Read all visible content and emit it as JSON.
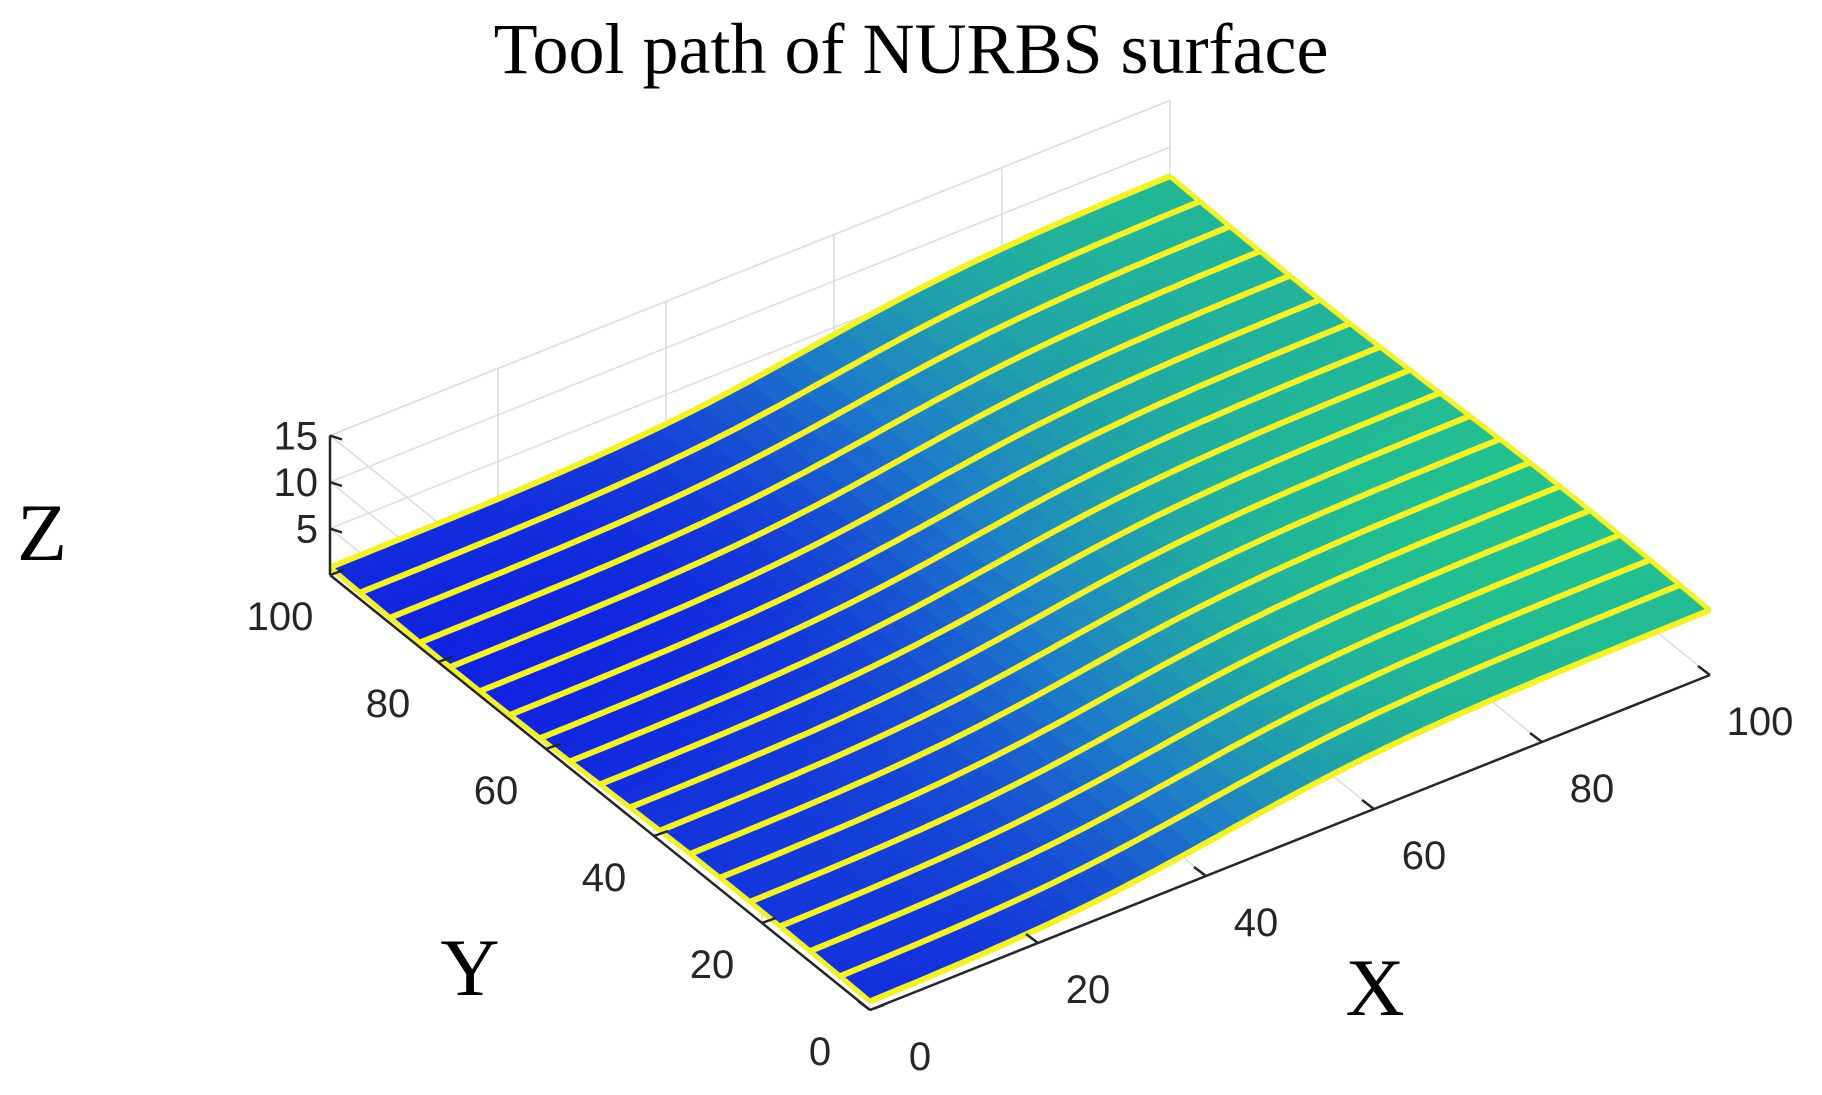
{
  "chart_data": {
    "type": "surface",
    "title": "Tool path of NURBS surface",
    "xlabel": "X",
    "ylabel": "Y",
    "zlabel": "Z",
    "xlim": [
      0,
      100
    ],
    "ylim": [
      0,
      100
    ],
    "zlim": [
      0,
      15
    ],
    "x_ticks": [
      "0",
      "20",
      "40",
      "60",
      "80",
      "100"
    ],
    "y_ticks": [
      "0",
      "20",
      "40",
      "60",
      "80",
      "100"
    ],
    "z_ticks": [
      "5",
      "10",
      "15"
    ],
    "grid": true,
    "path_lines": 19,
    "z_range_shown": [
      0,
      7
    ],
    "colors": {
      "low": "#1020e0",
      "mid": "#1e7fc8",
      "high": "#22c48c",
      "path": "#f2f226",
      "axis": "#262626",
      "grid": "#dcdcdc"
    }
  }
}
